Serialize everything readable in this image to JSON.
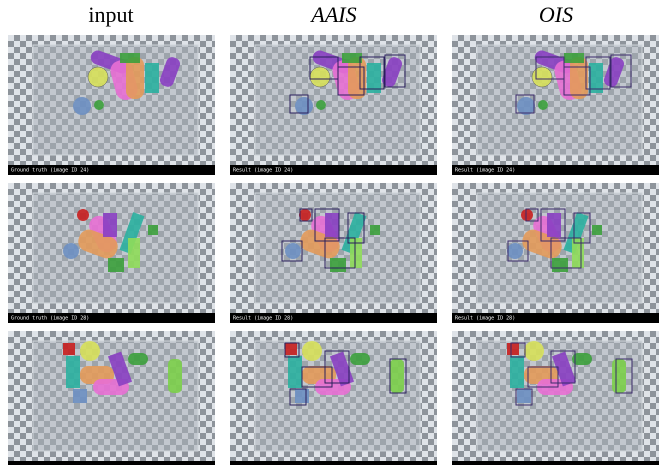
{
  "headers": [
    "input",
    "AAIS",
    "OIS"
  ],
  "captions": [
    [
      "Ground truth (image ID 24)",
      "Result (image ID 24)",
      "Result (image ID 24)"
    ],
    [
      "Ground truth (image ID 28)",
      "Result (image ID 28)",
      "Result (image ID 28)"
    ]
  ]
}
